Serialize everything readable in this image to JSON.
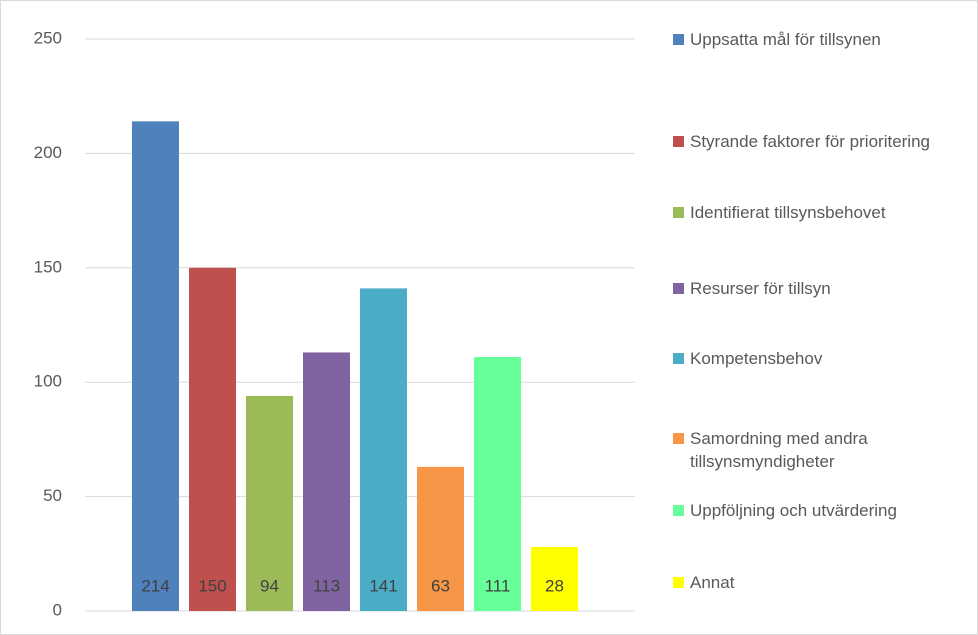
{
  "chart_data": {
    "type": "bar",
    "categories": [
      null
    ],
    "series": [
      {
        "name": "Uppsatta mål för tillsynen",
        "color": "#4f81bd",
        "values": [
          214
        ]
      },
      {
        "name": "Styrande faktorer för prioritering",
        "color": "#c0504d",
        "values": [
          150
        ]
      },
      {
        "name": "Identifierat tillsynsbehovet",
        "color": "#9bbb59",
        "values": [
          94
        ]
      },
      {
        "name": "Resurser för tillsyn",
        "color": "#8064a2",
        "values": [
          113
        ]
      },
      {
        "name": "Kompetensbehov",
        "color": "#4bacc6",
        "values": [
          141
        ]
      },
      {
        "name": "Samordning med andra tillsynsmyndigheter",
        "color": "#f79646",
        "values": [
          63
        ]
      },
      {
        "name": "Uppföljning och utvärdering",
        "color": "#66ff99",
        "values": [
          111
        ]
      },
      {
        "name": "Annat",
        "color": "#ffff00",
        "values": [
          28
        ]
      }
    ],
    "ylim": [
      0,
      250
    ],
    "yticks": [
      0,
      50,
      100,
      150,
      200,
      250
    ],
    "grid": true,
    "legend": "right"
  }
}
